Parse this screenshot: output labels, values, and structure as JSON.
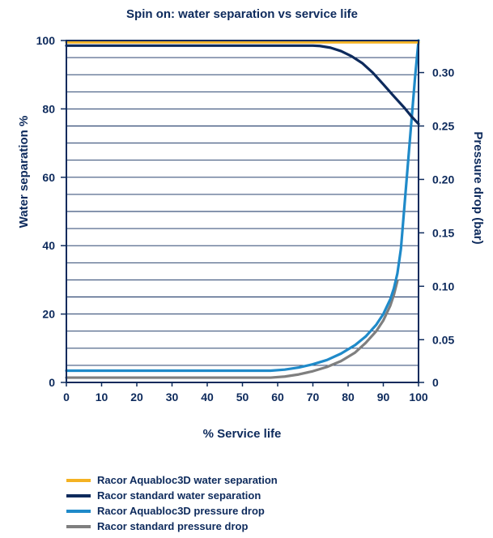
{
  "chart_data": {
    "type": "line",
    "title": "Spin on: water separation vs service life",
    "xlabel": "% Service life",
    "ylabel": "Water separation %",
    "y2label": "Pressure drop (bar)",
    "xlim": [
      0,
      100
    ],
    "ylim": [
      0,
      100
    ],
    "y2lim": [
      0.01,
      0.33
    ],
    "xticks": [
      "0",
      "10",
      "20",
      "30",
      "40",
      "50",
      "60",
      "70",
      "80",
      "90",
      "100"
    ],
    "yticks": [
      "0",
      "20",
      "40",
      "60",
      "80",
      "100"
    ],
    "y2ticks": [
      "0",
      "0.05",
      "0.10",
      "0.15",
      "0.20",
      "0.25",
      "0.30"
    ],
    "grid": true,
    "legend_position": "bottom",
    "series": [
      {
        "name": "Racor Aquabloc3D water separation",
        "axis": "left",
        "color": "#f4b223",
        "x": [
          0,
          100
        ],
        "y": [
          99.5,
          99.5
        ]
      },
      {
        "name": "Racor standard water separation",
        "axis": "left",
        "color": "#0d2a5c",
        "x": [
          0,
          70,
          72,
          75,
          78,
          81,
          84,
          87,
          90,
          93,
          96,
          98,
          100
        ],
        "y": [
          98.5,
          98.5,
          98.4,
          97.9,
          96.9,
          95.4,
          93.4,
          90.6,
          87.2,
          83.7,
          80.3,
          77.8,
          75.6
        ]
      },
      {
        "name": "Racor Aquabloc3D pressure drop",
        "axis": "right",
        "color": "#1f8ac9",
        "x": [
          0,
          58,
          62,
          66,
          70,
          74,
          78,
          82,
          85,
          88,
          90,
          92,
          93,
          94,
          95,
          96,
          97,
          98,
          99,
          100
        ],
        "y": [
          0.021,
          0.021,
          0.022,
          0.024,
          0.027,
          0.031,
          0.037,
          0.045,
          0.053,
          0.064,
          0.074,
          0.088,
          0.098,
          0.112,
          0.135,
          0.175,
          0.215,
          0.255,
          0.295,
          0.33
        ]
      },
      {
        "name": "Racor standard pressure drop",
        "axis": "right",
        "color": "#7f7f7f",
        "x": [
          0,
          58,
          62,
          66,
          70,
          74,
          78,
          82,
          85,
          88,
          90,
          92,
          93,
          94
        ],
        "y": [
          0.0145,
          0.0145,
          0.0155,
          0.0175,
          0.0205,
          0.0245,
          0.03,
          0.038,
          0.047,
          0.058,
          0.068,
          0.082,
          0.092,
          0.105
        ]
      }
    ]
  }
}
